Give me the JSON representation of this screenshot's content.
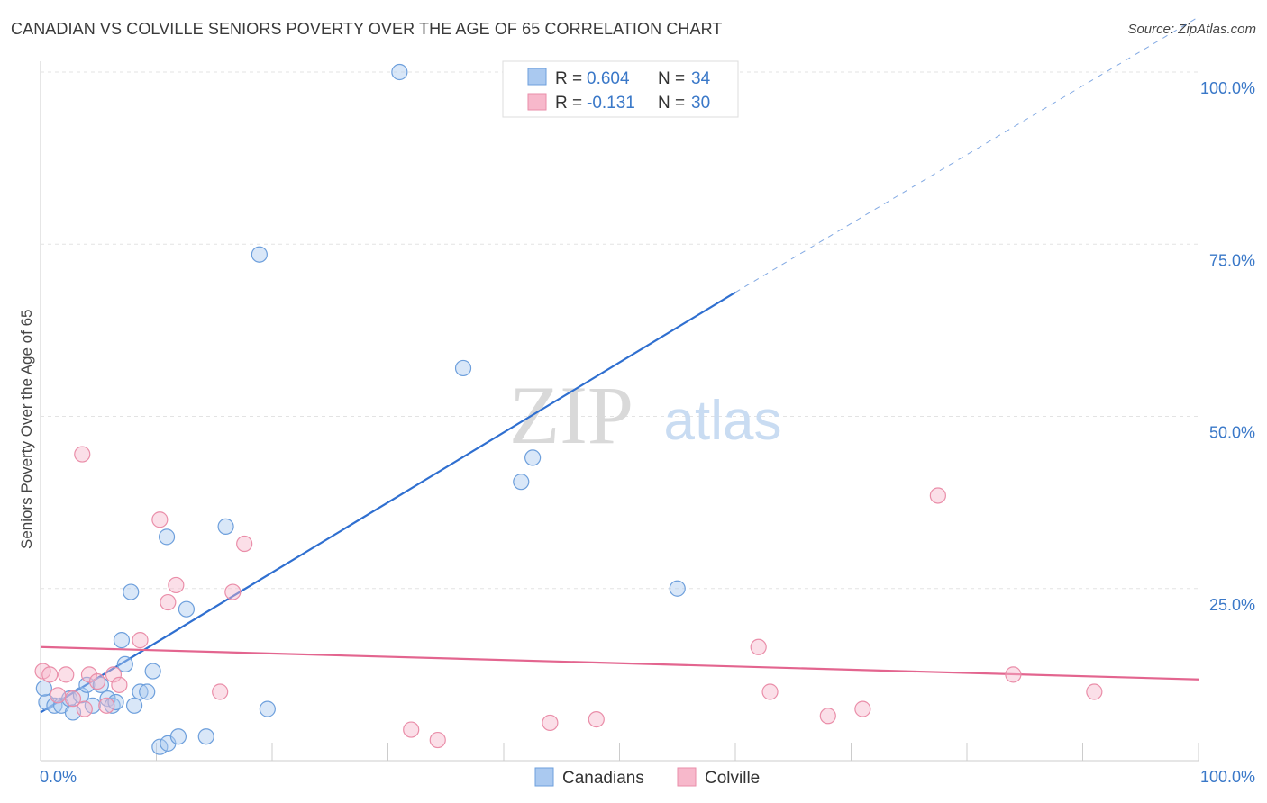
{
  "header": {
    "title": "CANADIAN VS COLVILLE SENIORS POVERTY OVER THE AGE OF 65 CORRELATION CHART",
    "source": "Source: ZipAtlas.com"
  },
  "watermark": {
    "zip": "ZIP",
    "atlas": "atlas"
  },
  "legend_box": {
    "rows": [
      {
        "r_label": "R =",
        "r_value": "0.604",
        "n_label": "N =",
        "n_value": "34",
        "color": "#aac9f0"
      },
      {
        "r_label": "R =",
        "r_value": "-0.131",
        "n_label": "N =",
        "n_value": "30",
        "color": "#f7b8cb"
      }
    ]
  },
  "bottom_legend": [
    {
      "label": "Canadians",
      "color": "#aac9f0"
    },
    {
      "label": "Colville",
      "color": "#f7b8cb"
    }
  ],
  "chart_data": {
    "type": "scatter",
    "title": "CANADIAN VS COLVILLE SENIORS POVERTY OVER THE AGE OF 65 CORRELATION CHART",
    "xlabel": "",
    "ylabel": "Seniors Poverty Over the Age of 65",
    "xlim": [
      0,
      100
    ],
    "ylim": [
      0,
      100
    ],
    "x_tick_labels": [
      "0.0%",
      "100.0%"
    ],
    "y_ticks": [
      25,
      50,
      75,
      100
    ],
    "y_tick_labels": [
      "25.0%",
      "50.0%",
      "75.0%",
      "100.0%"
    ],
    "grid": true,
    "series": [
      {
        "name": "Canadians",
        "color": "#aac9f0",
        "stroke": "#6d9fdc",
        "points": [
          [
            0.5,
            8.5
          ],
          [
            1.2,
            8.0
          ],
          [
            1.8,
            8.0
          ],
          [
            2.5,
            9.0
          ],
          [
            2.8,
            7.0
          ],
          [
            3.5,
            9.5
          ],
          [
            4.0,
            11.0
          ],
          [
            4.5,
            8.0
          ],
          [
            5.2,
            11.0
          ],
          [
            5.8,
            9.0
          ],
          [
            6.2,
            8.0
          ],
          [
            6.5,
            8.5
          ],
          [
            7.0,
            17.5
          ],
          [
            7.3,
            14.0
          ],
          [
            7.8,
            24.5
          ],
          [
            8.1,
            8.0
          ],
          [
            8.6,
            10.0
          ],
          [
            9.2,
            10.0
          ],
          [
            9.7,
            13.0
          ],
          [
            10.3,
            2.0
          ],
          [
            10.9,
            32.5
          ],
          [
            11.0,
            2.5
          ],
          [
            11.9,
            3.5
          ],
          [
            12.6,
            22.0
          ],
          [
            14.3,
            3.5
          ],
          [
            16.0,
            34.0
          ],
          [
            18.9,
            73.5
          ],
          [
            19.6,
            7.5
          ],
          [
            31.0,
            100.0
          ],
          [
            36.5,
            57.0
          ],
          [
            41.5,
            40.5
          ],
          [
            42.5,
            44.0
          ],
          [
            55.0,
            25.0
          ],
          [
            0.3,
            10.5
          ]
        ]
      },
      {
        "name": "Colville",
        "color": "#f7b8cb",
        "stroke": "#ea8ea9",
        "points": [
          [
            0.2,
            13.0
          ],
          [
            0.8,
            12.5
          ],
          [
            1.5,
            9.5
          ],
          [
            2.2,
            12.5
          ],
          [
            2.8,
            9.0
          ],
          [
            3.6,
            44.5
          ],
          [
            3.8,
            7.5
          ],
          [
            4.2,
            12.5
          ],
          [
            4.9,
            11.5
          ],
          [
            5.7,
            8.0
          ],
          [
            6.3,
            12.5
          ],
          [
            6.8,
            11.0
          ],
          [
            8.6,
            17.5
          ],
          [
            10.3,
            35.0
          ],
          [
            11.0,
            23.0
          ],
          [
            11.7,
            25.5
          ],
          [
            15.5,
            10.0
          ],
          [
            16.6,
            24.5
          ],
          [
            17.6,
            31.5
          ],
          [
            32.0,
            4.5
          ],
          [
            34.3,
            3.0
          ],
          [
            44.0,
            5.5
          ],
          [
            48.0,
            6.0
          ],
          [
            62.0,
            16.5
          ],
          [
            63.0,
            10.0
          ],
          [
            68.0,
            6.5
          ],
          [
            71.0,
            7.5
          ],
          [
            77.5,
            38.5
          ],
          [
            84.0,
            12.5
          ],
          [
            91.0,
            10.0
          ]
        ]
      }
    ],
    "trend_lines": [
      {
        "series": "Canadians",
        "x0": 0,
        "y0": 7.0,
        "x1": 60,
        "y1": 68.0,
        "dashed_to_x": 100,
        "dashed_to_y": 108.0,
        "color": "#2f6fd0"
      },
      {
        "series": "Colville",
        "x0": 0,
        "y0": 16.5,
        "x1": 100,
        "y1": 11.8,
        "color": "#e3658f"
      }
    ]
  }
}
